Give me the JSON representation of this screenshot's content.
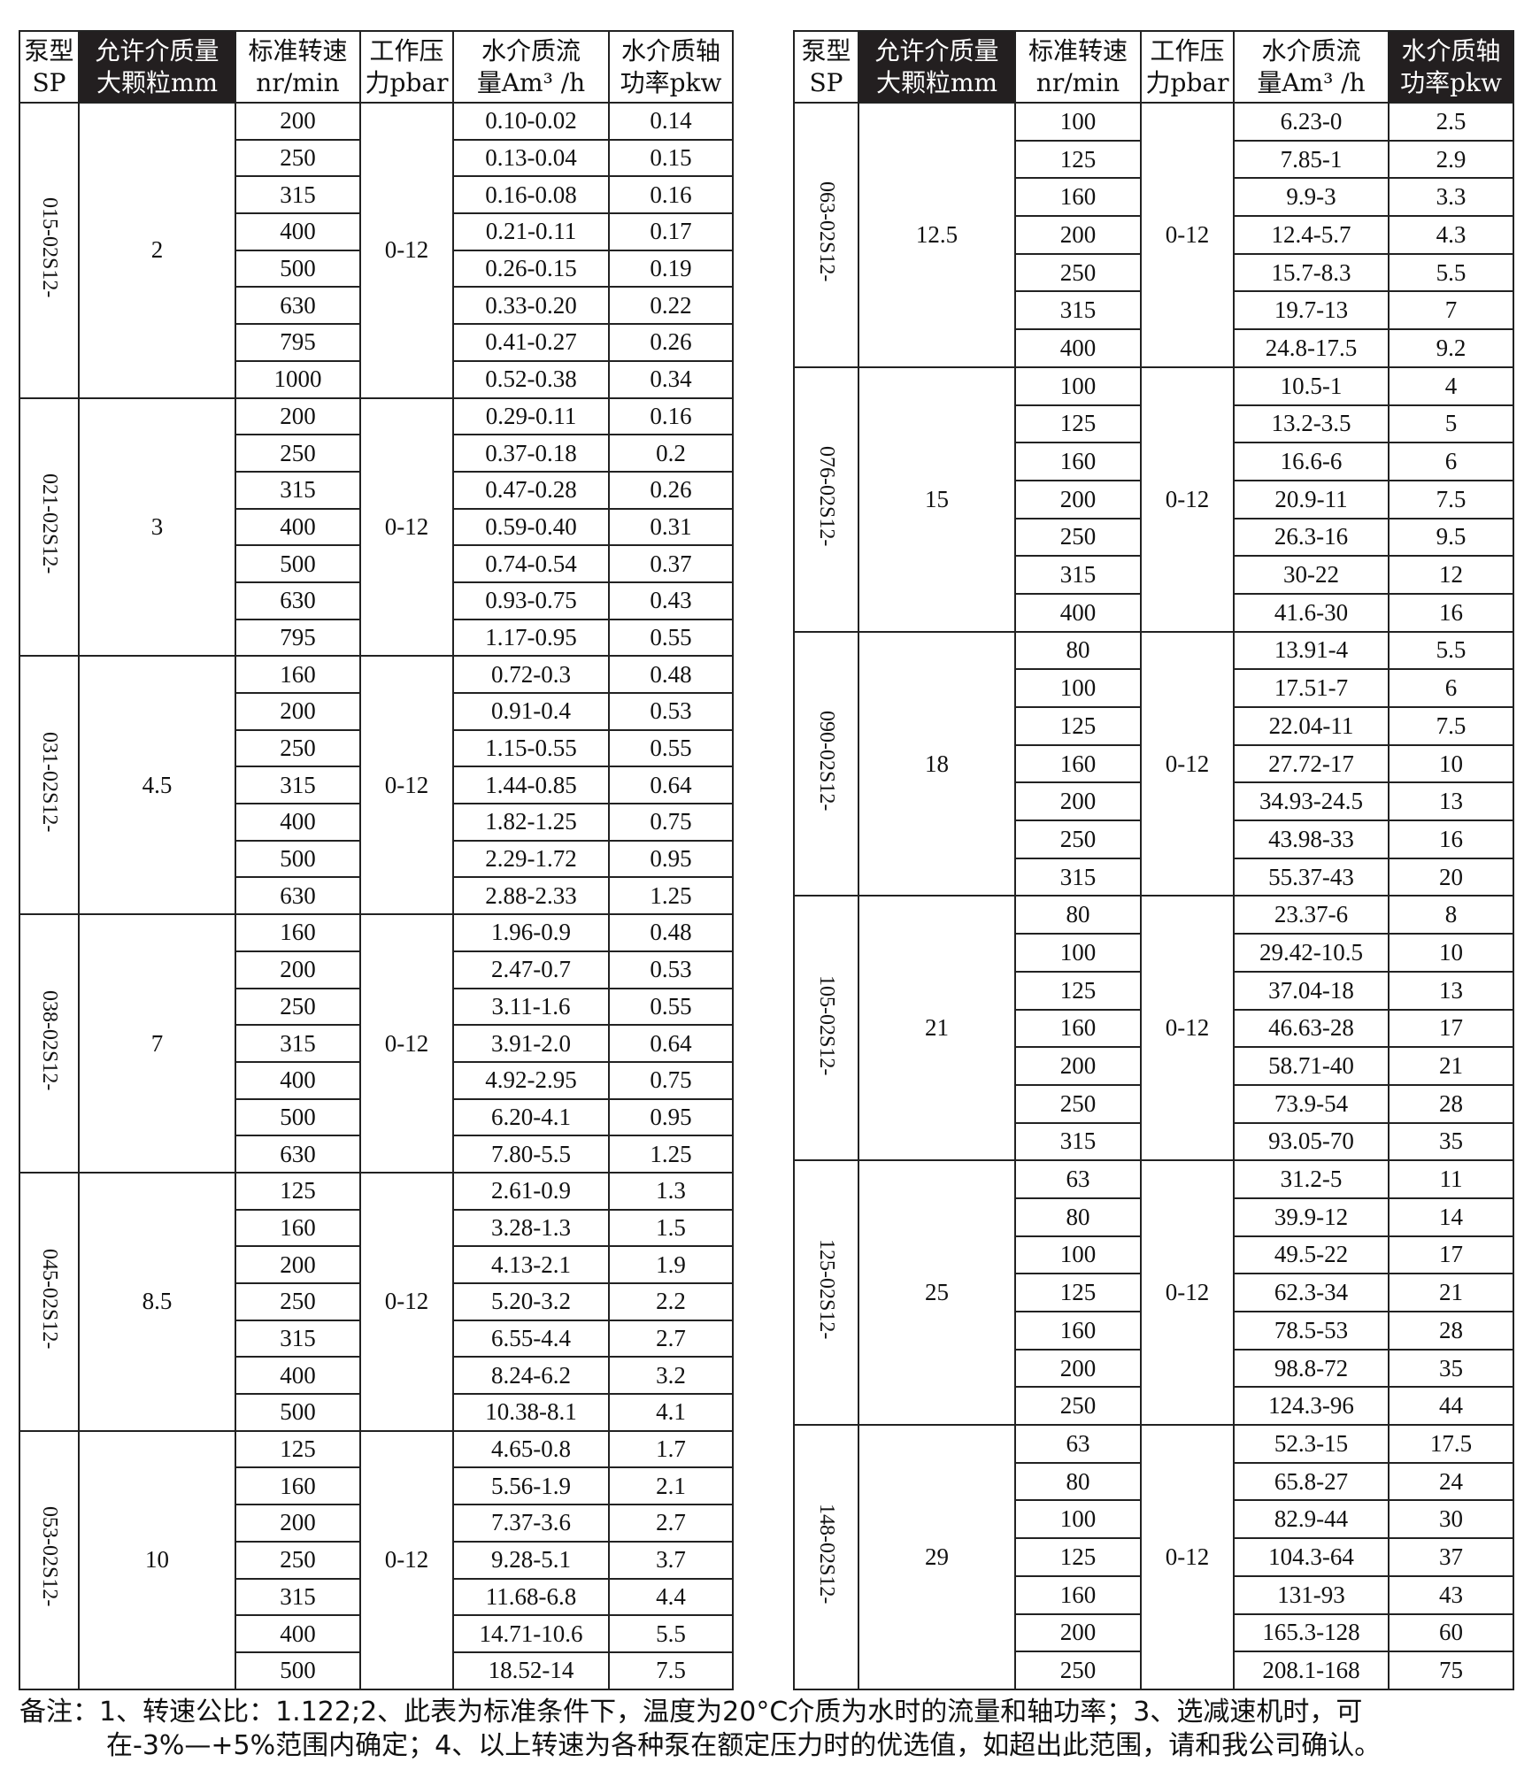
{
  "headers_left": [
    {
      "l1": "泵型",
      "l2": "SP",
      "dark": false
    },
    {
      "l1": "允许介质量",
      "l2": "大颗粒mm",
      "dark": true
    },
    {
      "l1": "标准转速",
      "l2": "nr/min",
      "dark": false
    },
    {
      "l1": "工作压",
      "l2": "力pbar",
      "dark": false
    },
    {
      "l1": "水介质流",
      "l2": "量Am³ /h",
      "dark": false
    },
    {
      "l1": "水介质轴",
      "l2": "功率pkw",
      "dark": false
    }
  ],
  "headers_right": [
    {
      "l1": "泵型",
      "l2": "SP",
      "dark": false
    },
    {
      "l1": "允许介质量",
      "l2": "大颗粒mm",
      "dark": true
    },
    {
      "l1": "标准转速",
      "l2": "nr/min",
      "dark": false
    },
    {
      "l1": "工作压",
      "l2": "力pbar",
      "dark": false
    },
    {
      "l1": "水介质流",
      "l2": "量Am³ /h",
      "dark": false
    },
    {
      "l1": "水介质轴",
      "l2": "功率pkw",
      "dark": true
    }
  ],
  "left_groups": [
    {
      "model": "015-02S12-",
      "particle": "2",
      "pressure": "0-12",
      "rows": [
        [
          "200",
          "0.10-0.02",
          "0.14"
        ],
        [
          "250",
          "0.13-0.04",
          "0.15"
        ],
        [
          "315",
          "0.16-0.08",
          "0.16"
        ],
        [
          "400",
          "0.21-0.11",
          "0.17"
        ],
        [
          "500",
          "0.26-0.15",
          "0.19"
        ],
        [
          "630",
          "0.33-0.20",
          "0.22"
        ],
        [
          "795",
          "0.41-0.27",
          "0.26"
        ],
        [
          "1000",
          "0.52-0.38",
          "0.34"
        ]
      ]
    },
    {
      "model": "021-02S12-",
      "particle": "3",
      "pressure": "0-12",
      "rows": [
        [
          "200",
          "0.29-0.11",
          "0.16"
        ],
        [
          "250",
          "0.37-0.18",
          "0.2"
        ],
        [
          "315",
          "0.47-0.28",
          "0.26"
        ],
        [
          "400",
          "0.59-0.40",
          "0.31"
        ],
        [
          "500",
          "0.74-0.54",
          "0.37"
        ],
        [
          "630",
          "0.93-0.75",
          "0.43"
        ],
        [
          "795",
          "1.17-0.95",
          "0.55"
        ]
      ]
    },
    {
      "model": "031-02S12-",
      "particle": "4.5",
      "pressure": "0-12",
      "rows": [
        [
          "160",
          "0.72-0.3",
          "0.48"
        ],
        [
          "200",
          "0.91-0.4",
          "0.53"
        ],
        [
          "250",
          "1.15-0.55",
          "0.55"
        ],
        [
          "315",
          "1.44-0.85",
          "0.64"
        ],
        [
          "400",
          "1.82-1.25",
          "0.75"
        ],
        [
          "500",
          "2.29-1.72",
          "0.95"
        ],
        [
          "630",
          "2.88-2.33",
          "1.25"
        ]
      ]
    },
    {
      "model": "038-02S12-",
      "particle": "7",
      "pressure": "0-12",
      "rows": [
        [
          "160",
          "1.96-0.9",
          "0.48"
        ],
        [
          "200",
          "2.47-0.7",
          "0.53"
        ],
        [
          "250",
          "3.11-1.6",
          "0.55"
        ],
        [
          "315",
          "3.91-2.0",
          "0.64"
        ],
        [
          "400",
          "4.92-2.95",
          "0.75"
        ],
        [
          "500",
          "6.20-4.1",
          "0.95"
        ],
        [
          "630",
          "7.80-5.5",
          "1.25"
        ]
      ]
    },
    {
      "model": "045-02S12-",
      "particle": "8.5",
      "pressure": "0-12",
      "rows": [
        [
          "125",
          "2.61-0.9",
          "1.3"
        ],
        [
          "160",
          "3.28-1.3",
          "1.5"
        ],
        [
          "200",
          "4.13-2.1",
          "1.9"
        ],
        [
          "250",
          "5.20-3.2",
          "2.2"
        ],
        [
          "315",
          "6.55-4.4",
          "2.7"
        ],
        [
          "400",
          "8.24-6.2",
          "3.2"
        ],
        [
          "500",
          "10.38-8.1",
          "4.1"
        ]
      ]
    },
    {
      "model": "053-02S12-",
      "particle": "10",
      "pressure": "0-12",
      "rows": [
        [
          "125",
          "4.65-0.8",
          "1.7"
        ],
        [
          "160",
          "5.56-1.9",
          "2.1"
        ],
        [
          "200",
          "7.37-3.6",
          "2.7"
        ],
        [
          "250",
          "9.28-5.1",
          "3.7"
        ],
        [
          "315",
          "11.68-6.8",
          "4.4"
        ],
        [
          "400",
          "14.71-10.6",
          "5.5"
        ],
        [
          "500",
          "18.52-14",
          "7.5"
        ]
      ]
    }
  ],
  "right_groups": [
    {
      "model": "063-02S12-",
      "particle": "12.5",
      "pressure": "0-12",
      "rows": [
        [
          "100",
          "6.23-0",
          "2.5"
        ],
        [
          "125",
          "7.85-1",
          "2.9"
        ],
        [
          "160",
          "9.9-3",
          "3.3"
        ],
        [
          "200",
          "12.4-5.7",
          "4.3"
        ],
        [
          "250",
          "15.7-8.3",
          "5.5"
        ],
        [
          "315",
          "19.7-13",
          "7"
        ],
        [
          "400",
          "24.8-17.5",
          "9.2"
        ]
      ]
    },
    {
      "model": "076-02S12-",
      "particle": "15",
      "pressure": "0-12",
      "rows": [
        [
          "100",
          "10.5-1",
          "4"
        ],
        [
          "125",
          "13.2-3.5",
          "5"
        ],
        [
          "160",
          "16.6-6",
          "6"
        ],
        [
          "200",
          "20.9-11",
          "7.5"
        ],
        [
          "250",
          "26.3-16",
          "9.5"
        ],
        [
          "315",
          "30-22",
          "12"
        ],
        [
          "400",
          "41.6-30",
          "16"
        ]
      ]
    },
    {
      "model": "090-02S12-",
      "particle": "18",
      "pressure": "0-12",
      "rows": [
        [
          "80",
          "13.91-4",
          "5.5"
        ],
        [
          "100",
          "17.51-7",
          "6"
        ],
        [
          "125",
          "22.04-11",
          "7.5"
        ],
        [
          "160",
          "27.72-17",
          "10"
        ],
        [
          "200",
          "34.93-24.5",
          "13"
        ],
        [
          "250",
          "43.98-33",
          "16"
        ],
        [
          "315",
          "55.37-43",
          "20"
        ]
      ]
    },
    {
      "model": "105-02S12-",
      "particle": "21",
      "pressure": "0-12",
      "rows": [
        [
          "80",
          "23.37-6",
          "8"
        ],
        [
          "100",
          "29.42-10.5",
          "10"
        ],
        [
          "125",
          "37.04-18",
          "13"
        ],
        [
          "160",
          "46.63-28",
          "17"
        ],
        [
          "200",
          "58.71-40",
          "21"
        ],
        [
          "250",
          "73.9-54",
          "28"
        ],
        [
          "315",
          "93.05-70",
          "35"
        ]
      ]
    },
    {
      "model": "125-02S12-",
      "particle": "25",
      "pressure": "0-12",
      "rows": [
        [
          "63",
          "31.2-5",
          "11"
        ],
        [
          "80",
          "39.9-12",
          "14"
        ],
        [
          "100",
          "49.5-22",
          "17"
        ],
        [
          "125",
          "62.3-34",
          "21"
        ],
        [
          "160",
          "78.5-53",
          "28"
        ],
        [
          "200",
          "98.8-72",
          "35"
        ],
        [
          "250",
          "124.3-96",
          "44"
        ]
      ]
    },
    {
      "model": "148-02S12-",
      "particle": "29",
      "pressure": "0-12",
      "rows": [
        [
          "63",
          "52.3-15",
          "17.5"
        ],
        [
          "80",
          "65.8-27",
          "24"
        ],
        [
          "100",
          "82.9-44",
          "30"
        ],
        [
          "125",
          "104.3-64",
          "37"
        ],
        [
          "160",
          "131-93",
          "43"
        ],
        [
          "200",
          "165.3-128",
          "60"
        ],
        [
          "250",
          "208.1-168",
          "75"
        ]
      ]
    }
  ],
  "note": {
    "line1": "备注：1、转速公比：1.122;2、此表为标准条件下，温度为20°C介质为水时的流量和轴功率；3、选减速机时，可",
    "line2": "在-3%—+5%范围内确定；4、以上转速为各种泵在额定压力时的优选值，如超出此范围，请和我公司确认。"
  },
  "colors": {
    "header_dark": "#231f20",
    "border": "#222222"
  }
}
